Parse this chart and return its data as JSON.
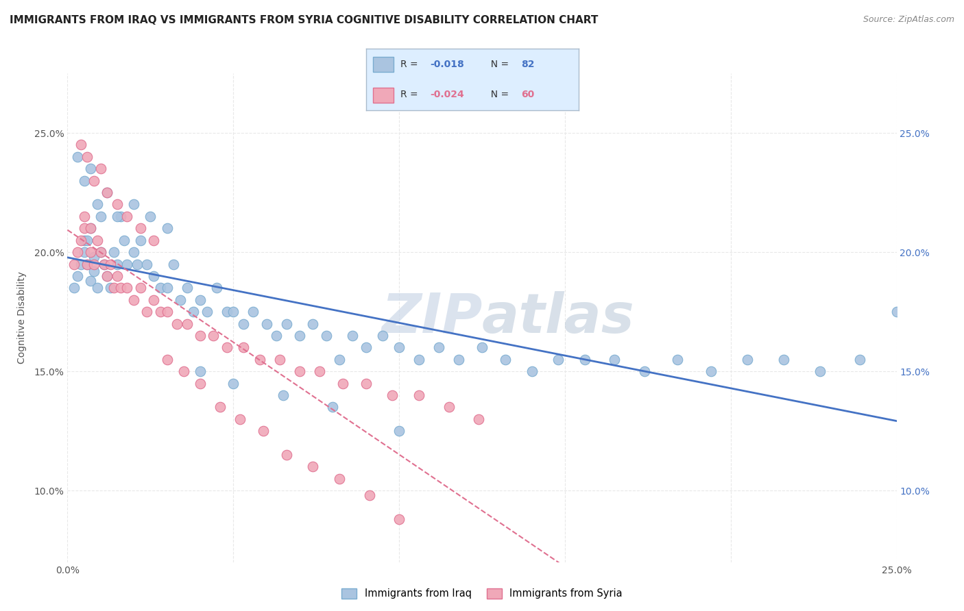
{
  "title": "IMMIGRANTS FROM IRAQ VS IMMIGRANTS FROM SYRIA COGNITIVE DISABILITY CORRELATION CHART",
  "source": "Source: ZipAtlas.com",
  "ylabel": "Cognitive Disability",
  "xlim": [
    0.0,
    0.25
  ],
  "ylim": [
    0.07,
    0.275
  ],
  "iraq_color": "#aac4e0",
  "iraq_edge_color": "#7aacd0",
  "syria_color": "#f0a8b8",
  "syria_edge_color": "#e07090",
  "iraq_line_color": "#4472c4",
  "syria_line_color": "#e07090",
  "legend_face_color": "#ddeeff",
  "legend_edge_color": "#aabbcc",
  "iraq_R": -0.018,
  "iraq_N": 82,
  "syria_R": -0.024,
  "syria_N": 60,
  "right_axis_color": "#4472c4",
  "grid_color": "#e8e8e8",
  "grid_style": "--",
  "background_color": "#ffffff",
  "watermark_color": "#ccd8e8",
  "iraq_scatter_x": [
    0.002,
    0.003,
    0.004,
    0.005,
    0.005,
    0.006,
    0.006,
    0.007,
    0.007,
    0.008,
    0.008,
    0.009,
    0.01,
    0.01,
    0.011,
    0.012,
    0.013,
    0.014,
    0.015,
    0.016,
    0.017,
    0.018,
    0.02,
    0.021,
    0.022,
    0.024,
    0.026,
    0.028,
    0.03,
    0.032,
    0.034,
    0.036,
    0.038,
    0.04,
    0.042,
    0.045,
    0.048,
    0.05,
    0.053,
    0.056,
    0.06,
    0.063,
    0.066,
    0.07,
    0.074,
    0.078,
    0.082,
    0.086,
    0.09,
    0.095,
    0.1,
    0.106,
    0.112,
    0.118,
    0.125,
    0.132,
    0.14,
    0.148,
    0.156,
    0.165,
    0.174,
    0.184,
    0.194,
    0.205,
    0.216,
    0.227,
    0.239,
    0.25,
    0.003,
    0.005,
    0.007,
    0.009,
    0.012,
    0.015,
    0.02,
    0.025,
    0.03,
    0.04,
    0.05,
    0.065,
    0.08,
    0.1
  ],
  "iraq_scatter_y": [
    0.185,
    0.19,
    0.195,
    0.2,
    0.205,
    0.195,
    0.205,
    0.188,
    0.21,
    0.192,
    0.198,
    0.185,
    0.2,
    0.215,
    0.195,
    0.19,
    0.185,
    0.2,
    0.195,
    0.215,
    0.205,
    0.195,
    0.2,
    0.195,
    0.205,
    0.195,
    0.19,
    0.185,
    0.185,
    0.195,
    0.18,
    0.185,
    0.175,
    0.18,
    0.175,
    0.185,
    0.175,
    0.175,
    0.17,
    0.175,
    0.17,
    0.165,
    0.17,
    0.165,
    0.17,
    0.165,
    0.155,
    0.165,
    0.16,
    0.165,
    0.16,
    0.155,
    0.16,
    0.155,
    0.16,
    0.155,
    0.15,
    0.155,
    0.155,
    0.155,
    0.15,
    0.155,
    0.15,
    0.155,
    0.155,
    0.15,
    0.155,
    0.175,
    0.24,
    0.23,
    0.235,
    0.22,
    0.225,
    0.215,
    0.22,
    0.215,
    0.21,
    0.15,
    0.145,
    0.14,
    0.135,
    0.125
  ],
  "syria_scatter_x": [
    0.002,
    0.003,
    0.004,
    0.005,
    0.005,
    0.006,
    0.007,
    0.007,
    0.008,
    0.009,
    0.01,
    0.011,
    0.012,
    0.013,
    0.014,
    0.015,
    0.016,
    0.018,
    0.02,
    0.022,
    0.024,
    0.026,
    0.028,
    0.03,
    0.033,
    0.036,
    0.04,
    0.044,
    0.048,
    0.053,
    0.058,
    0.064,
    0.07,
    0.076,
    0.083,
    0.09,
    0.098,
    0.106,
    0.115,
    0.124,
    0.004,
    0.006,
    0.008,
    0.01,
    0.012,
    0.015,
    0.018,
    0.022,
    0.026,
    0.03,
    0.035,
    0.04,
    0.046,
    0.052,
    0.059,
    0.066,
    0.074,
    0.082,
    0.091,
    0.1
  ],
  "syria_scatter_y": [
    0.195,
    0.2,
    0.205,
    0.21,
    0.215,
    0.195,
    0.2,
    0.21,
    0.195,
    0.205,
    0.2,
    0.195,
    0.19,
    0.195,
    0.185,
    0.19,
    0.185,
    0.185,
    0.18,
    0.185,
    0.175,
    0.18,
    0.175,
    0.175,
    0.17,
    0.17,
    0.165,
    0.165,
    0.16,
    0.16,
    0.155,
    0.155,
    0.15,
    0.15,
    0.145,
    0.145,
    0.14,
    0.14,
    0.135,
    0.13,
    0.245,
    0.24,
    0.23,
    0.235,
    0.225,
    0.22,
    0.215,
    0.21,
    0.205,
    0.155,
    0.15,
    0.145,
    0.135,
    0.13,
    0.125,
    0.115,
    0.11,
    0.105,
    0.098,
    0.088
  ]
}
